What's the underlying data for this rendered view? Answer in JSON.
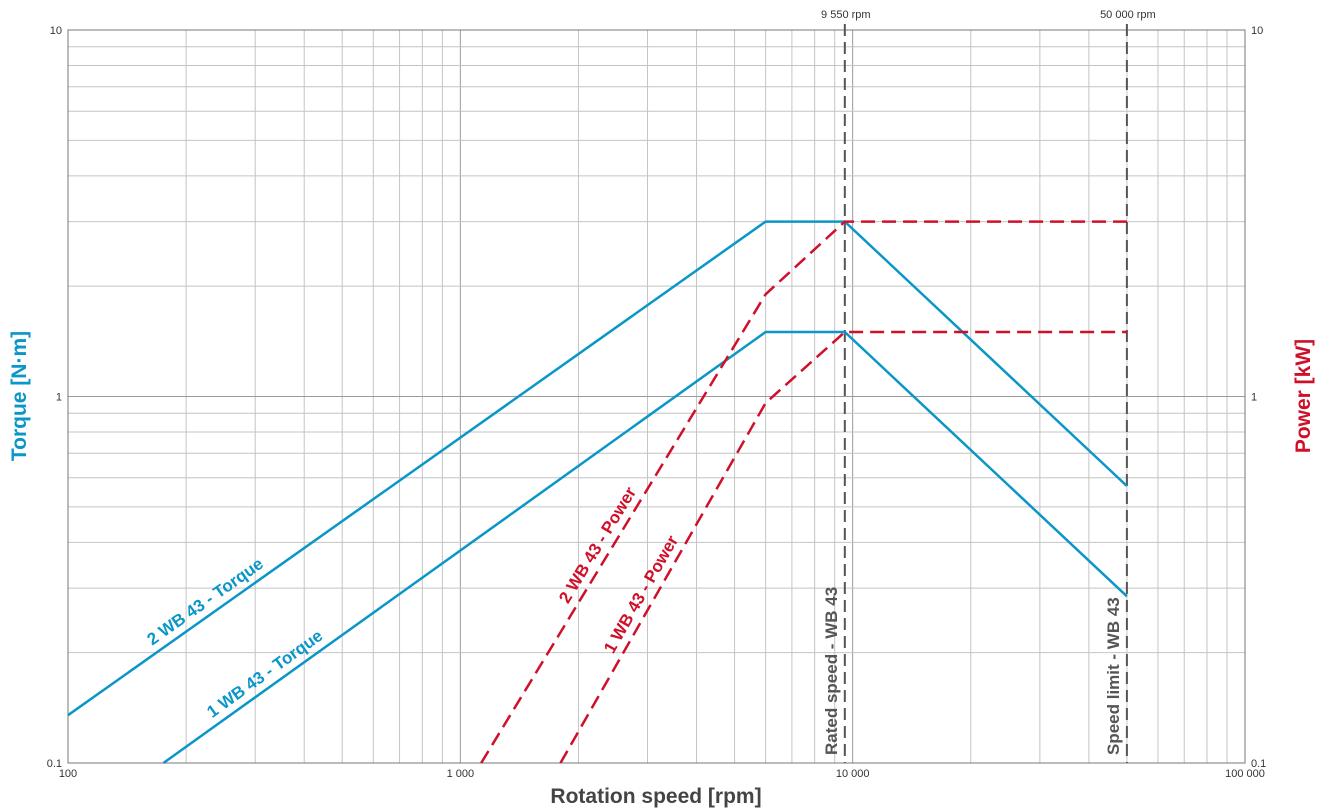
{
  "chart_data": {
    "type": "line",
    "x_scale": "log",
    "y_scale": "log",
    "xlim": [
      100,
      100000
    ],
    "ylim": [
      0.1,
      10
    ],
    "y2lim": [
      0.1,
      10
    ],
    "xlabel": "Rotation speed [rpm]",
    "ylabel": "Torque [N·m]",
    "y2label": "Power [kW]",
    "x_tick_labels": [
      "100",
      "1 000",
      "10 000",
      "100 000"
    ],
    "y_tick_labels": [
      "0.1",
      "1",
      "10"
    ],
    "y2_tick_labels": [
      "0.1",
      "1",
      "10"
    ],
    "grid": true,
    "colors": {
      "torque": "#0a96c8",
      "power": "#d0102a",
      "reference": "#555555"
    },
    "series": [
      {
        "name": "2 WB 43 - Torque",
        "axis": "left",
        "color": "#0a96c8",
        "dash": "solid",
        "x": [
          100,
          6000,
          9550,
          50000
        ],
        "y": [
          0.135,
          3.0,
          3.0,
          0.57
        ]
      },
      {
        "name": "1 WB 43 - Torque",
        "axis": "left",
        "color": "#0a96c8",
        "dash": "solid",
        "x": [
          175,
          6000,
          9550,
          50000
        ],
        "y": [
          0.1,
          1.5,
          1.5,
          0.285
        ]
      },
      {
        "name": "2 WB 43 - Power",
        "axis": "right",
        "color": "#d0102a",
        "dash": "dashed",
        "x": [
          1130,
          6000,
          9550,
          50000
        ],
        "y": [
          0.1,
          1.9,
          3.0,
          3.0
        ]
      },
      {
        "name": "1 WB 43 - Power",
        "axis": "right",
        "color": "#d0102a",
        "dash": "dashed",
        "x": [
          1800,
          6000,
          9550,
          50000
        ],
        "y": [
          0.1,
          0.96,
          1.5,
          1.5
        ]
      }
    ],
    "reference_lines": [
      {
        "x": 9550,
        "top_label": "9 550 rpm",
        "label": "Rated speed - WB 43"
      },
      {
        "x": 50000,
        "top_label": "50 000 rpm",
        "label": "Speed limit - WB 43"
      }
    ]
  }
}
